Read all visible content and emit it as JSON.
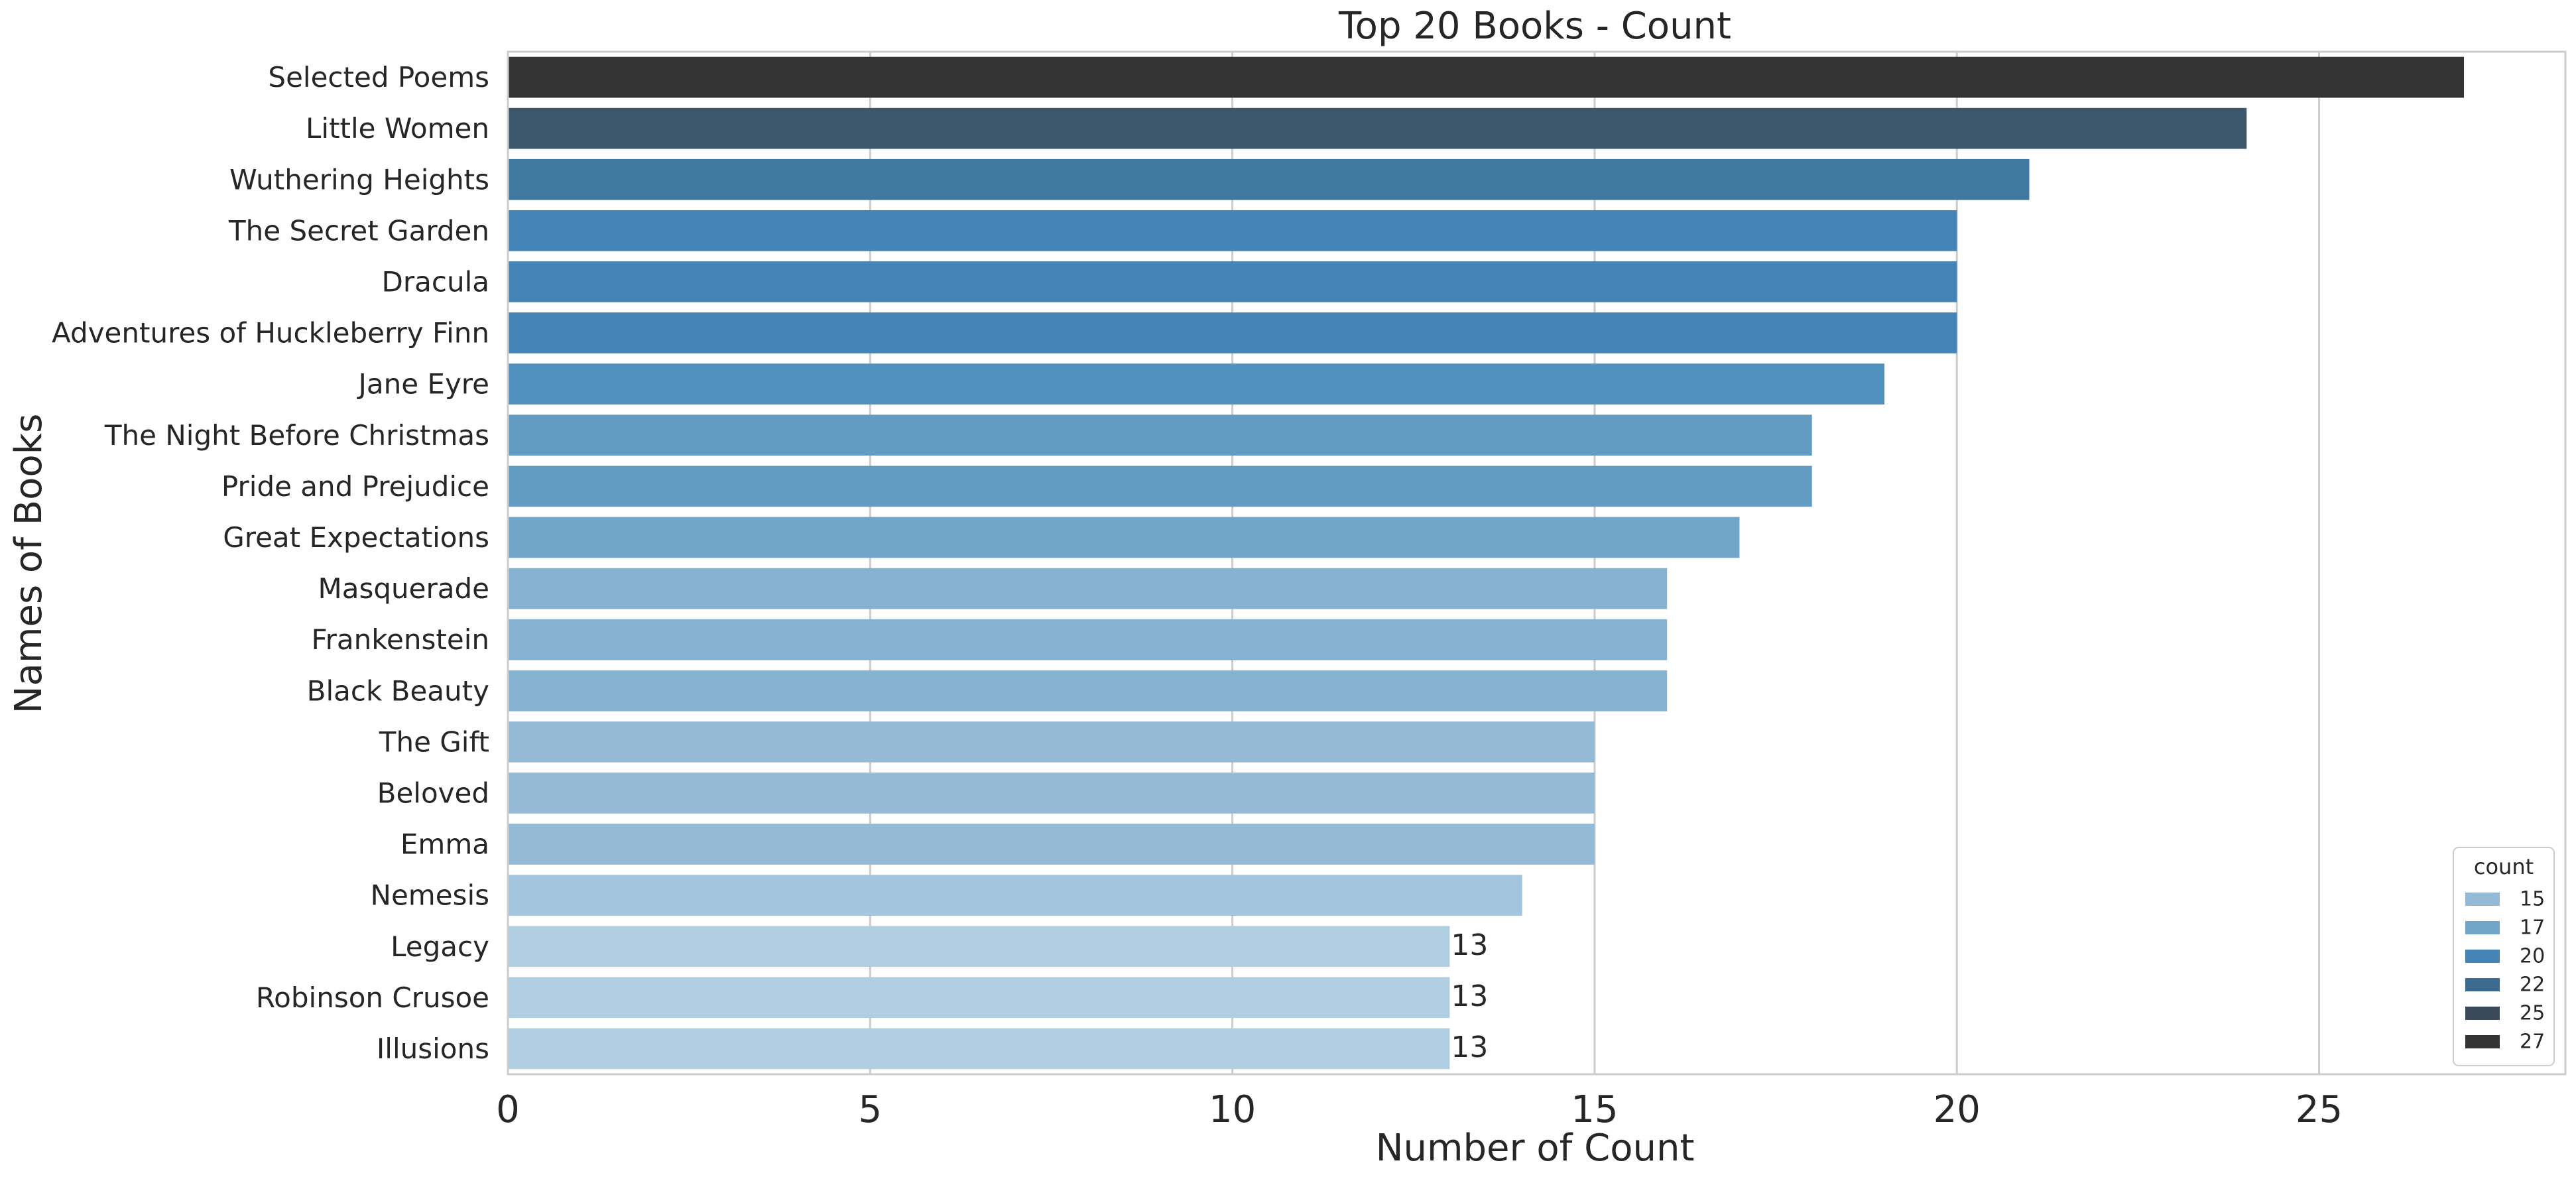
{
  "chart_data": {
    "type": "bar",
    "orientation": "horizontal",
    "title": "Top 20 Books - Count",
    "xlabel": "Number of Count",
    "ylabel": "Names of Books",
    "xlim": [
      0,
      28.4
    ],
    "xticks": [
      0,
      5,
      10,
      15,
      20,
      25
    ],
    "grid": true,
    "categories": [
      "Selected Poems",
      "Little Women",
      "Wuthering Heights",
      "The Secret Garden",
      "Dracula",
      "Adventures of Huckleberry Finn",
      "Jane Eyre",
      "The Night Before Christmas",
      "Pride and Prejudice",
      "Great Expectations",
      "Masquerade",
      "Frankenstein",
      "Black Beauty",
      "The Gift",
      "Beloved",
      "Emma",
      "Nemesis",
      "Legacy",
      "Robinson Crusoe",
      "Illusions"
    ],
    "values": [
      27,
      24,
      21,
      20,
      20,
      20,
      19,
      18,
      18,
      17,
      16,
      16,
      16,
      15,
      15,
      15,
      14,
      13,
      13,
      13
    ],
    "colors": [
      "#333333",
      "#3c566b",
      "#3f78a1",
      "#4584b6",
      "#4584b6",
      "#4584b6",
      "#5091c0",
      "#629cc3",
      "#629cc3",
      "#72a6c8",
      "#85b2d0",
      "#85b2d0",
      "#85b2d0",
      "#94bad5",
      "#94bad5",
      "#94bad5",
      "#a3c5de",
      "#b1cfe2",
      "#b1cfe2",
      "#b1cfe2"
    ],
    "data_labels": [
      null,
      null,
      null,
      null,
      null,
      null,
      null,
      null,
      null,
      null,
      null,
      null,
      null,
      null,
      null,
      null,
      null,
      "13",
      "13",
      "13"
    ],
    "legend": {
      "title": "count",
      "position": "lower-right",
      "entries": [
        {
          "label": "15",
          "color": "#94bad5"
        },
        {
          "label": "17",
          "color": "#72a6c8"
        },
        {
          "label": "20",
          "color": "#4584b6"
        },
        {
          "label": "22",
          "color": "#3c6b8f"
        },
        {
          "label": "25",
          "color": "#3b4a5a"
        },
        {
          "label": "27",
          "color": "#333333"
        }
      ]
    }
  }
}
